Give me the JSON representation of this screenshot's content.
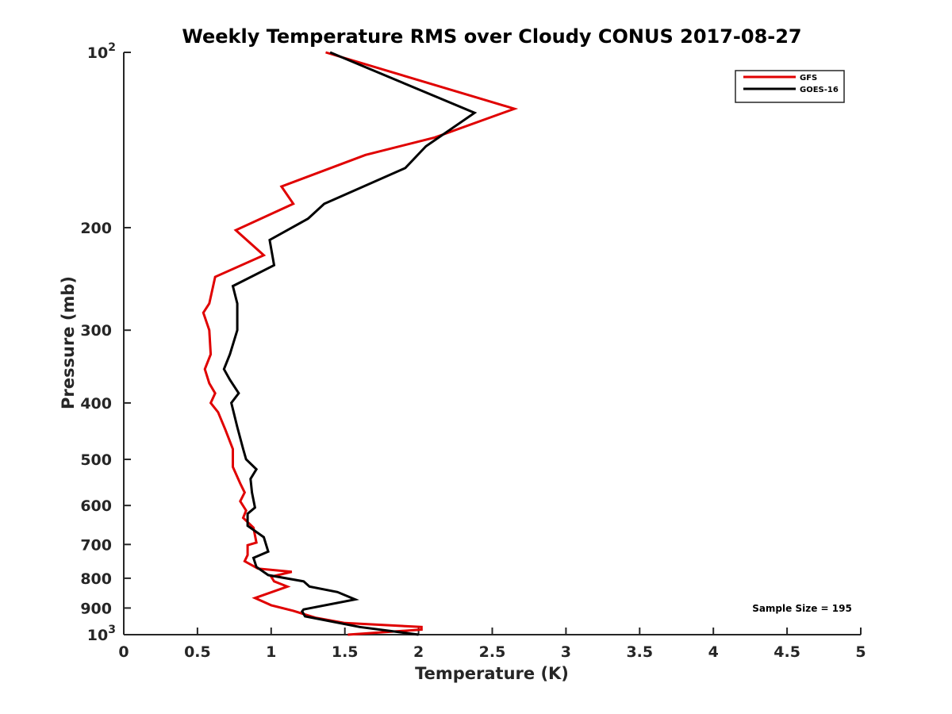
{
  "chart_data": {
    "type": "line",
    "title": "Weekly Temperature RMS over Cloudy CONUS 2017-08-27",
    "xlabel": "Temperature (K)",
    "ylabel": "Pressure (mb)",
    "xlim": [
      0,
      5
    ],
    "ylim": [
      100,
      1000
    ],
    "y_scale": "log",
    "y_reversed": true,
    "grid": false,
    "legend_position": "top-right",
    "x_ticks": [
      "0",
      "0.5",
      "1",
      "1.5",
      "2",
      "2.5",
      "3",
      "3.5",
      "4",
      "4.5",
      "5"
    ],
    "y_ticks": [
      {
        "value": 100,
        "label": "10",
        "sup": "2"
      },
      {
        "value": 200,
        "label": "200",
        "sup": ""
      },
      {
        "value": 300,
        "label": "300",
        "sup": ""
      },
      {
        "value": 400,
        "label": "400",
        "sup": ""
      },
      {
        "value": 500,
        "label": "500",
        "sup": ""
      },
      {
        "value": 600,
        "label": "600",
        "sup": ""
      },
      {
        "value": 700,
        "label": "700",
        "sup": ""
      },
      {
        "value": 800,
        "label": "800",
        "sup": ""
      },
      {
        "value": 900,
        "label": "900",
        "sup": ""
      },
      {
        "value": 1000,
        "label": "10",
        "sup": "3"
      }
    ],
    "annotation": "Sample Size = 195",
    "series": [
      {
        "name": "GFS",
        "color": "#e00000",
        "points": [
          [
            1.37,
            100
          ],
          [
            2.65,
            125
          ],
          [
            2.11,
            140
          ],
          [
            1.64,
            150
          ],
          [
            1.07,
            170
          ],
          [
            1.15,
            182
          ],
          [
            0.76,
            202
          ],
          [
            0.95,
            223
          ],
          [
            0.62,
            243
          ],
          [
            0.58,
            270
          ],
          [
            0.54,
            280
          ],
          [
            0.58,
            300
          ],
          [
            0.59,
            330
          ],
          [
            0.55,
            350
          ],
          [
            0.58,
            370
          ],
          [
            0.62,
            385
          ],
          [
            0.59,
            400
          ],
          [
            0.64,
            415
          ],
          [
            0.69,
            445
          ],
          [
            0.74,
            480
          ],
          [
            0.74,
            515
          ],
          [
            0.79,
            550
          ],
          [
            0.82,
            570
          ],
          [
            0.79,
            590
          ],
          [
            0.83,
            612
          ],
          [
            0.81,
            630
          ],
          [
            0.88,
            655
          ],
          [
            0.9,
            695
          ],
          [
            0.84,
            702
          ],
          [
            0.84,
            730
          ],
          [
            0.82,
            748
          ],
          [
            0.91,
            770
          ],
          [
            1.14,
            780
          ],
          [
            1.0,
            795
          ],
          [
            1.02,
            810
          ],
          [
            1.11,
            827
          ],
          [
            0.89,
            865
          ],
          [
            1.0,
            890
          ],
          [
            1.15,
            910
          ],
          [
            1.3,
            935
          ],
          [
            1.5,
            955
          ],
          [
            2.02,
            970
          ],
          [
            2.02,
            980
          ],
          [
            1.52,
            1000
          ]
        ]
      },
      {
        "name": "GOES-16",
        "color": "#000000",
        "points": [
          [
            1.4,
            100
          ],
          [
            2.38,
            127
          ],
          [
            2.05,
            145
          ],
          [
            1.91,
            158
          ],
          [
            1.36,
            182
          ],
          [
            1.25,
            193
          ],
          [
            0.99,
            210
          ],
          [
            1.02,
            232
          ],
          [
            0.74,
            252
          ],
          [
            0.77,
            270
          ],
          [
            0.77,
            300
          ],
          [
            0.72,
            330
          ],
          [
            0.68,
            350
          ],
          [
            0.72,
            365
          ],
          [
            0.78,
            385
          ],
          [
            0.73,
            400
          ],
          [
            0.77,
            440
          ],
          [
            0.81,
            480
          ],
          [
            0.83,
            500
          ],
          [
            0.9,
            520
          ],
          [
            0.86,
            540
          ],
          [
            0.87,
            570
          ],
          [
            0.89,
            605
          ],
          [
            0.84,
            620
          ],
          [
            0.84,
            650
          ],
          [
            0.95,
            680
          ],
          [
            0.98,
            720
          ],
          [
            0.88,
            738
          ],
          [
            0.9,
            765
          ],
          [
            0.98,
            790
          ],
          [
            1.22,
            810
          ],
          [
            1.26,
            827
          ],
          [
            1.45,
            845
          ],
          [
            1.57,
            870
          ],
          [
            1.22,
            905
          ],
          [
            1.21,
            912
          ],
          [
            1.23,
            930
          ],
          [
            1.6,
            970
          ],
          [
            2.0,
            1000
          ]
        ]
      }
    ]
  }
}
